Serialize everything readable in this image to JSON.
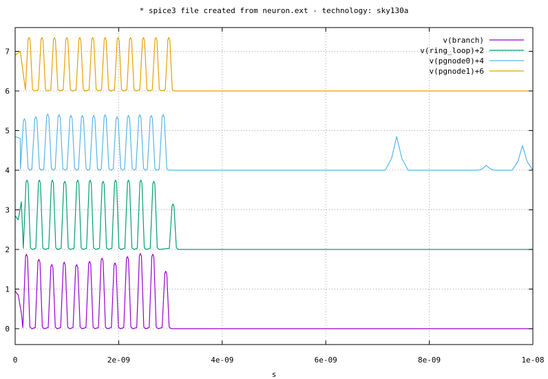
{
  "chart_data": {
    "type": "line",
    "title": "* spice3 file created from neuron.ext - technology: sky130a",
    "xlabel": "s",
    "ylabel": "",
    "xlim": [
      0,
      1e-08
    ],
    "ylim": [
      -0.4,
      7.6
    ],
    "grid": true,
    "legend_position": "top-right",
    "x_ticks": [
      {
        "value": 0,
        "label": "0"
      },
      {
        "value": 2e-09,
        "label": "2e-09"
      },
      {
        "value": 4e-09,
        "label": "4e-09"
      },
      {
        "value": 6e-09,
        "label": "6e-09"
      },
      {
        "value": 8e-09,
        "label": "8e-09"
      },
      {
        "value": 1e-08,
        "label": "1e-08"
      }
    ],
    "y_ticks": [
      {
        "value": 0,
        "label": "0"
      },
      {
        "value": 1,
        "label": "1"
      },
      {
        "value": 2,
        "label": "2"
      },
      {
        "value": 3,
        "label": "3"
      },
      {
        "value": 4,
        "label": "4"
      },
      {
        "value": 5,
        "label": "5"
      },
      {
        "value": 6,
        "label": "6"
      },
      {
        "value": 7,
        "label": "7"
      }
    ],
    "series": [
      {
        "name": "v(branch)",
        "color": "#9400d3",
        "baseline": 0,
        "start": [
          [
            0,
            0.95
          ],
          [
            6e-11,
            0.85
          ],
          [
            1.2e-10,
            0.4
          ]
        ],
        "peaks": [
          2.2e-10,
          4.6e-10,
          7.1e-10,
          9.5e-10,
          1.19e-09,
          1.44e-09,
          1.68e-09,
          1.93e-09,
          2.17e-09,
          2.42e-09,
          2.66e-09,
          2.91e-09
        ],
        "peak_values": [
          1.88,
          1.75,
          1.62,
          1.68,
          1.62,
          1.7,
          1.78,
          1.66,
          1.82,
          1.9,
          1.88,
          1.45
        ],
        "spike_width": 1.3e-10,
        "end_active": 3.05e-09,
        "bumps": []
      },
      {
        "name": "v(ring_loop)+2",
        "color": "#009e73",
        "baseline": 2,
        "start": [
          [
            0,
            2.85
          ],
          [
            6e-11,
            2.75
          ],
          [
            1.2e-10,
            3.2
          ]
        ],
        "peaks": [
          2.3e-10,
          4.7e-10,
          7.2e-10,
          9.6e-10,
          1.21e-09,
          1.45e-09,
          1.7e-09,
          1.94e-09,
          2.19e-09,
          2.43e-09,
          2.68e-09,
          3.05e-09
        ],
        "peak_values": [
          3.75,
          3.75,
          3.75,
          3.72,
          3.75,
          3.75,
          3.72,
          3.75,
          3.75,
          3.75,
          3.72,
          3.15
        ],
        "spike_width": 1.3e-10,
        "end_active": 3.2e-09,
        "bumps": []
      },
      {
        "name": "v(pgnode0)+4",
        "color": "#56b4e9",
        "baseline": 4,
        "start": [
          [
            0,
            4.85
          ],
          [
            1e-10,
            4.8
          ]
        ],
        "peaks": [
          1.8e-10,
          4e-10,
          6.3e-10,
          8.5e-10,
          1.08e-09,
          1.3e-09,
          1.52e-09,
          1.74e-09,
          1.97e-09,
          2.19e-09,
          2.41e-09,
          2.63e-09,
          2.86e-09
        ],
        "peak_values": [
          5.3,
          5.35,
          5.42,
          5.4,
          5.38,
          5.38,
          5.38,
          5.4,
          5.35,
          5.38,
          5.4,
          5.38,
          5.4
        ],
        "spike_width": 1.4e-10,
        "end_active": 3.05e-09,
        "bumps": [
          {
            "x": 7.37e-09,
            "height": 0.85,
            "width": 2.2e-10
          },
          {
            "x": 9.8e-09,
            "height": 0.62,
            "width": 2e-10
          },
          {
            "x": 9.1e-09,
            "height": 0.12,
            "width": 1.5e-10
          }
        ]
      },
      {
        "name": "v(pgnode1)+6",
        "color": "#e69f00",
        "baseline": 6,
        "start": [
          [
            0,
            6.9
          ],
          [
            1e-10,
            7.0
          ]
        ],
        "peaks": [
          2.7e-10,
          5.2e-10,
          7.6e-10,
          1e-09,
          1.25e-09,
          1.5e-09,
          1.74e-09,
          1.99e-09,
          2.23e-09,
          2.48e-09,
          2.72e-09,
          2.97e-09
        ],
        "peak_values": [
          7.35,
          7.35,
          7.35,
          7.35,
          7.35,
          7.35,
          7.35,
          7.35,
          7.35,
          7.35,
          7.35,
          7.35
        ],
        "spike_width": 1.3e-10,
        "end_active": 3.1e-09,
        "bumps": []
      }
    ]
  }
}
